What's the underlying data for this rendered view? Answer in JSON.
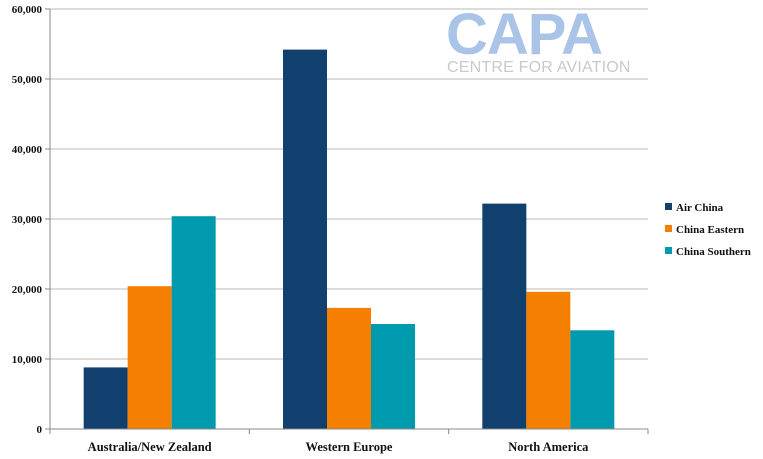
{
  "logo": {
    "main": "CAPA",
    "sub": "CENTRE FOR AVIATION"
  },
  "chart_data": {
    "type": "bar",
    "categories": [
      "Australia/New Zealand",
      "Western Europe",
      "North America"
    ],
    "series": [
      {
        "name": "Air China",
        "color": "#12406e",
        "values": [
          8800,
          54200,
          32200
        ]
      },
      {
        "name": "China Eastern",
        "color": "#f57f00",
        "values": [
          20400,
          17300,
          19600
        ]
      },
      {
        "name": "China Southern",
        "color": "#009aaf",
        "values": [
          30400,
          15000,
          14100
        ]
      }
    ],
    "ylim": [
      0,
      60000
    ],
    "yticks": [
      0,
      10000,
      20000,
      30000,
      40000,
      50000,
      60000
    ],
    "ytick_labels": [
      "0",
      "10,000",
      "20,000",
      "30,000",
      "40,000",
      "50,000",
      "60,000"
    ],
    "grid": true,
    "legend": "right"
  }
}
